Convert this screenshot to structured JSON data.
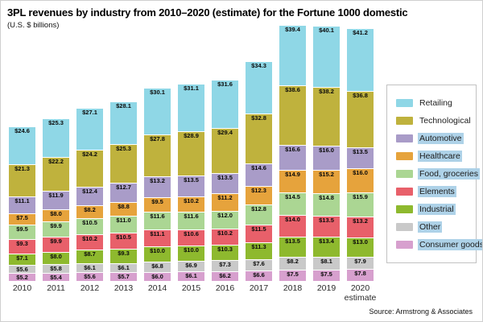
{
  "header": {
    "title": "3PL revenues by industry from 2010–2020 (estimate) for the Fortune 1000 domestic",
    "subtitle": "(U.S. $ billions)"
  },
  "footer": {
    "source": "Source: Armstrong & Associates"
  },
  "chart_data": {
    "type": "bar",
    "stacked": true,
    "title": "3PL revenues by industry from 2010–2020 (estimate) for the Fortune 1000 domestic",
    "subtitle": "(U.S. $ billions)",
    "value_prefix": "$",
    "grid": false,
    "legend_position": "right",
    "legend_highlight_color": "#aed2e8",
    "categories": [
      "2010",
      "2011",
      "2012",
      "2013",
      "2014",
      "2015",
      "2016",
      "2017",
      "2018",
      "2019",
      "2020\nestimate"
    ],
    "series": [
      {
        "name": "Retailing",
        "color": "#8fd7e6",
        "highlighted": false,
        "values": [
          24.6,
          25.3,
          27.1,
          28.1,
          30.1,
          31.1,
          31.6,
          34.3,
          39.4,
          40.1,
          41.2
        ]
      },
      {
        "name": "Technological",
        "color": "#bfb23d",
        "highlighted": false,
        "values": [
          21.3,
          22.2,
          24.2,
          25.3,
          27.8,
          28.9,
          29.4,
          32.8,
          38.6,
          38.2,
          36.8
        ]
      },
      {
        "name": "Automotive",
        "color": "#a99cc8",
        "highlighted": true,
        "values": [
          11.1,
          11.9,
          12.4,
          12.7,
          13.2,
          13.5,
          13.5,
          14.6,
          16.6,
          16.0,
          13.5
        ]
      },
      {
        "name": "Healthcare",
        "color": "#e6a33c",
        "highlighted": true,
        "values": [
          7.5,
          8.0,
          8.2,
          8.8,
          9.5,
          10.2,
          11.2,
          12.3,
          14.9,
          15.2,
          16.0
        ]
      },
      {
        "name": "Food, groceries",
        "color": "#abd693",
        "highlighted": true,
        "values": [
          9.5,
          9.9,
          10.5,
          11.0,
          11.6,
          11.6,
          12.0,
          12.8,
          14.5,
          14.8,
          15.9
        ]
      },
      {
        "name": "Elements",
        "color": "#e8606a",
        "highlighted": true,
        "values": [
          9.3,
          9.9,
          10.2,
          10.5,
          11.1,
          10.6,
          10.2,
          11.5,
          14.0,
          13.5,
          13.2
        ]
      },
      {
        "name": "Industrial",
        "color": "#8eb92e",
        "highlighted": true,
        "values": [
          7.1,
          8.0,
          8.7,
          9.3,
          10.0,
          10.0,
          10.3,
          11.3,
          13.5,
          13.4,
          13.0
        ]
      },
      {
        "name": "Other",
        "color": "#c9c9c9",
        "highlighted": true,
        "values": [
          5.6,
          5.8,
          6.1,
          6.1,
          6.8,
          6.9,
          7.3,
          7.6,
          8.2,
          8.1,
          7.9
        ]
      },
      {
        "name": "Consumer goods",
        "color": "#d7a0ce",
        "highlighted": true,
        "values": [
          5.2,
          5.4,
          5.6,
          5.7,
          6.0,
          6.1,
          6.2,
          6.6,
          7.5,
          7.5,
          7.8
        ]
      }
    ]
  }
}
